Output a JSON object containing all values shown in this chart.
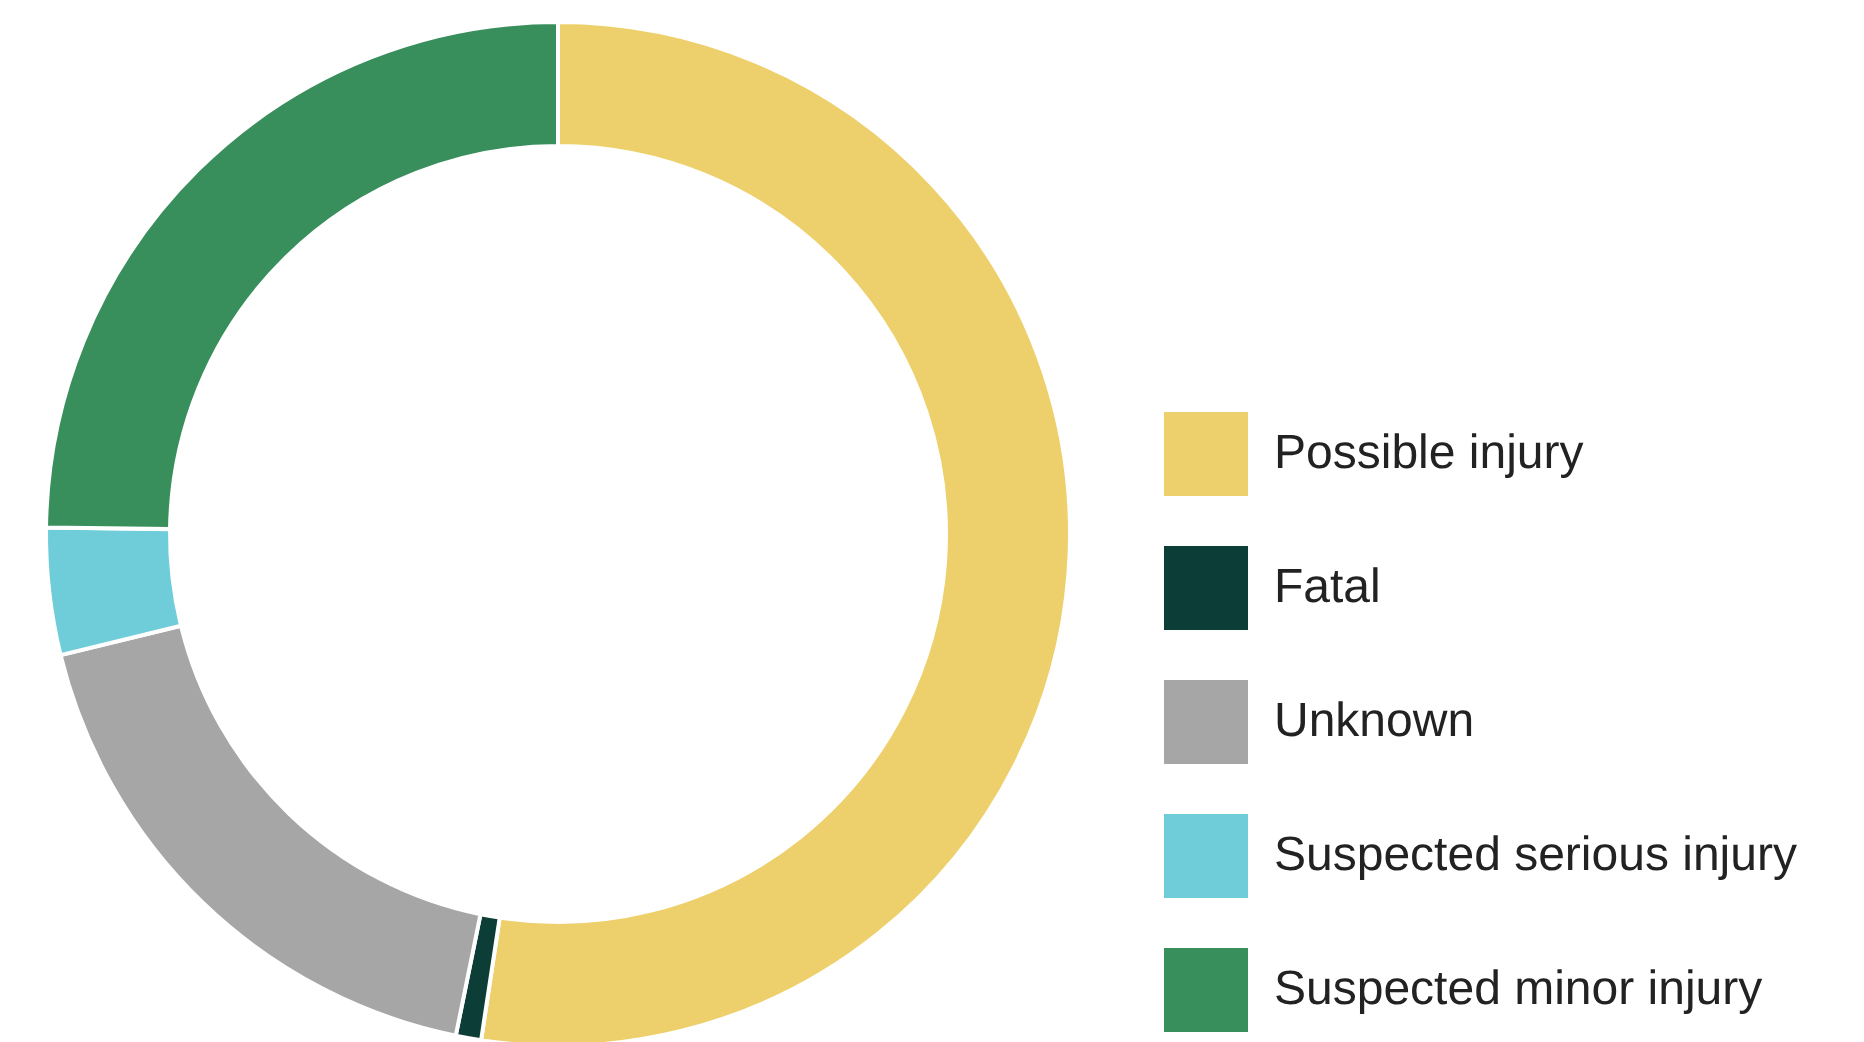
{
  "chart_data": {
    "type": "donut",
    "categories": [
      "Possible injury",
      "Fatal",
      "Unknown",
      "Suspected serious injury",
      "Suspected minor injury"
    ],
    "values": [
      52.4,
      0.8,
      18,
      4,
      24.8
    ],
    "colors": [
      "#edd06b",
      "#0c3d37",
      "#a6a6a6",
      "#6ecdd9",
      "#388f5c"
    ],
    "legend": "right"
  }
}
